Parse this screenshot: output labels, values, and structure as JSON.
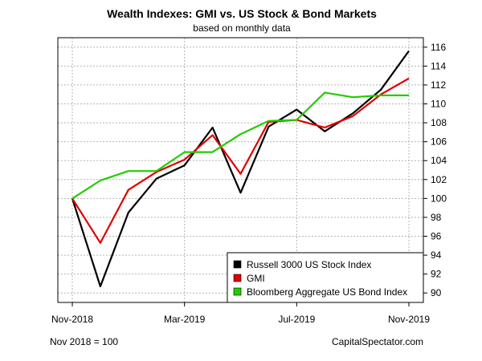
{
  "chart_data": {
    "type": "line",
    "title": "Wealth Indexes: GMI vs. US Stock & Bond Markets",
    "subtitle": "based on monthly data",
    "x": [
      "Nov-2018",
      "Dec-2018",
      "Jan-2019",
      "Feb-2019",
      "Mar-2019",
      "Apr-2019",
      "May-2019",
      "Jun-2019",
      "Jul-2019",
      "Aug-2019",
      "Sep-2019",
      "Oct-2019",
      "Nov-2019"
    ],
    "x_tick_labels": [
      "Nov-2018",
      "Mar-2019",
      "Jul-2019",
      "Nov-2019"
    ],
    "y_ticks": [
      90,
      92,
      94,
      96,
      98,
      100,
      102,
      104,
      106,
      108,
      110,
      112,
      114,
      116
    ],
    "ylim": [
      89,
      117
    ],
    "y_axis_side": "right",
    "grid": true,
    "legend_position": "bottom-right",
    "series": [
      {
        "name": "Russell 3000 US Stock Index",
        "color": "#000000",
        "values": [
          100.0,
          90.7,
          98.5,
          102.1,
          103.5,
          107.5,
          100.6,
          107.6,
          109.4,
          107.1,
          109.0,
          111.5,
          115.6
        ]
      },
      {
        "name": "GMI",
        "color": "#e00000",
        "values": [
          100.0,
          95.3,
          100.9,
          102.8,
          104.1,
          106.7,
          102.6,
          108.1,
          108.3,
          107.5,
          108.7,
          111.0,
          112.7
        ]
      },
      {
        "name": "Bloomberg Aggregate US Bond Index",
        "color": "#22cc00",
        "values": [
          100.0,
          101.9,
          102.9,
          102.9,
          104.9,
          104.9,
          106.8,
          108.2,
          108.3,
          111.2,
          110.7,
          110.9,
          110.9
        ]
      }
    ]
  },
  "footer": {
    "left": "Nov 2018 = 100",
    "right": "CapitalSpectator.com"
  }
}
